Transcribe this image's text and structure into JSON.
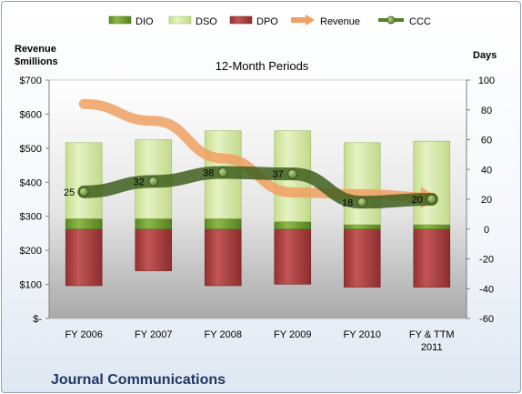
{
  "chart_data": {
    "type": "bar",
    "title": "12-Month Periods",
    "company": "Journal Communications",
    "categories": [
      "FY 2006",
      "FY 2007",
      "FY 2008",
      "FY 2009",
      "FY 2010",
      "FY & TTM 2011"
    ],
    "left_axis": {
      "label_line1": "Revenue",
      "label_line2": "$millions",
      "range": [
        0,
        700
      ],
      "ticks": [
        0,
        100,
        200,
        300,
        400,
        500,
        600,
        700
      ],
      "tick_labels": [
        "$-",
        "$100",
        "$200",
        "$300",
        "$400",
        "$500",
        "$600",
        "$700"
      ]
    },
    "right_axis": {
      "label": "Days",
      "range": [
        -60,
        100
      ],
      "ticks": [
        -60,
        -40,
        -20,
        0,
        20,
        40,
        60,
        80,
        100
      ],
      "tick_labels": [
        "-60",
        "-40",
        "-20",
        "0",
        "20",
        "40",
        "60",
        "80",
        "100"
      ]
    },
    "grid": false,
    "legend_position": "top",
    "series": [
      {
        "name": "DIO",
        "kind": "stacked-bar",
        "axis": "days",
        "values": [
          7,
          7,
          7,
          5,
          3,
          3
        ],
        "color": "#6f9a2b"
      },
      {
        "name": "DSO",
        "kind": "stacked-bar",
        "axis": "days",
        "values": [
          51,
          53,
          59,
          61,
          55,
          56
        ],
        "color": "#d4e6a4"
      },
      {
        "name": "DPO",
        "kind": "stacked-bar-negative",
        "axis": "days",
        "values": [
          38,
          28,
          38,
          37,
          39,
          39
        ],
        "color": "#a63c3c"
      },
      {
        "name": "Revenue",
        "kind": "line",
        "axis": "revenue",
        "values": [
          630,
          580,
          470,
          370,
          365,
          355
        ],
        "color": "#f0a060"
      },
      {
        "name": "CCC",
        "kind": "line",
        "axis": "days",
        "values": [
          25,
          32,
          38,
          37,
          18,
          20
        ],
        "labels": [
          "25",
          "32",
          "38",
          "37",
          "18",
          "20"
        ],
        "color": "#56802a"
      }
    ]
  }
}
